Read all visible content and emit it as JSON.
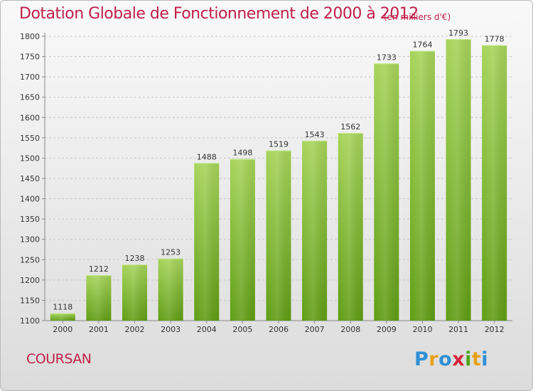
{
  "header": {
    "title": "Dotation Globale de Fonctionnement de 2000 à 2012",
    "subtitle": "(en milliers d'€)"
  },
  "footer": {
    "commune": "COURSAN",
    "logo_text": "Proxiti"
  },
  "colors": {
    "accent": "#c0204a",
    "bar_top": "#a6d45a",
    "bar_bottom": "#5f9d14"
  },
  "chart_data": {
    "type": "bar",
    "title": "Dotation Globale de Fonctionnement de 2000 à 2012",
    "subtitle": "(en milliers d'€)",
    "categories": [
      "2000",
      "2001",
      "2002",
      "2003",
      "2004",
      "2005",
      "2006",
      "2007",
      "2008",
      "2009",
      "2010",
      "2011",
      "2012"
    ],
    "values": [
      1118,
      1212,
      1238,
      1253,
      1488,
      1498,
      1519,
      1543,
      1562,
      1733,
      1764,
      1793,
      1778
    ],
    "yticks": [
      1100,
      1150,
      1200,
      1250,
      1300,
      1350,
      1400,
      1450,
      1500,
      1550,
      1600,
      1650,
      1700,
      1750,
      1800
    ],
    "ylim": [
      1100,
      1800
    ],
    "xlabel": "",
    "ylabel": "",
    "grid": true
  }
}
